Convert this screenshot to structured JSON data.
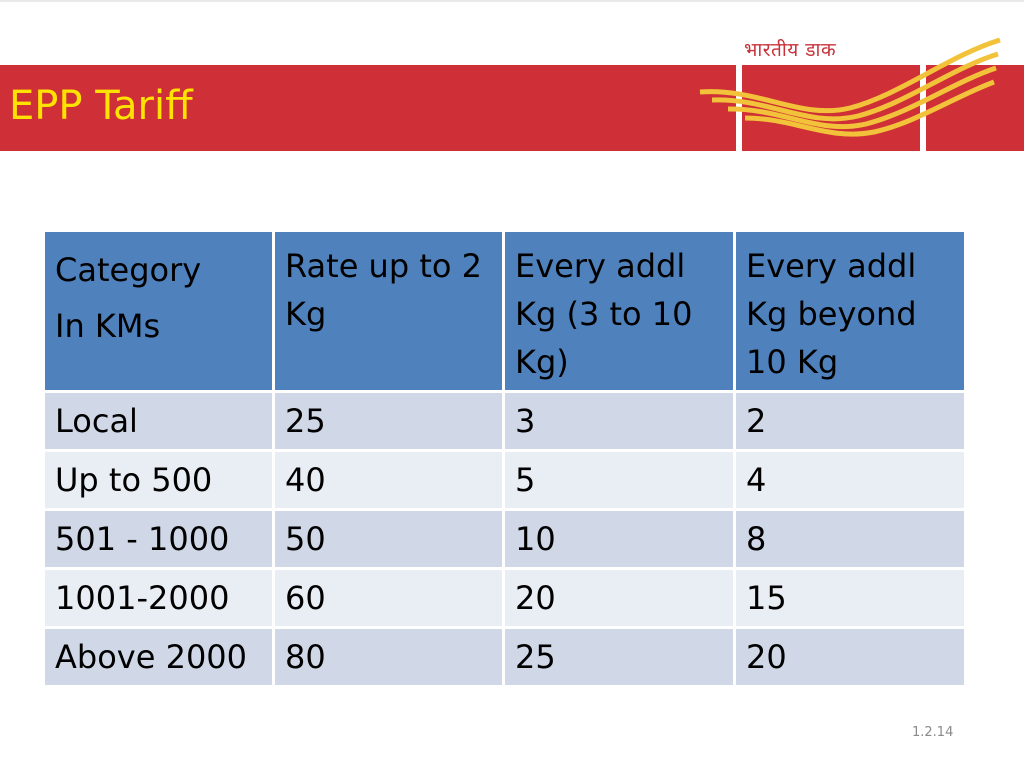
{
  "slide": {
    "title": "EPP Tariff",
    "logo_text": "भारतीय डाक",
    "slide_number": "1.2.14"
  },
  "colors": {
    "title_bar": "#cf2f36",
    "title_text": "#ffe300",
    "header_fill": "#4f81bd",
    "row_odd": "#d0d8e8",
    "row_even": "#e9edf4"
  },
  "table": {
    "headers": [
      {
        "lines": [
          "Category",
          "In KMs"
        ]
      },
      {
        "lines": [
          "Rate up to 2 Kg"
        ]
      },
      {
        "lines": [
          "Every addl Kg (3 to 10 Kg)"
        ]
      },
      {
        "lines": [
          "Every addl Kg beyond 10 Kg"
        ]
      }
    ],
    "rows": [
      [
        "Local",
        "25",
        "3",
        "2"
      ],
      [
        "Up to 500",
        "40",
        "5",
        "4"
      ],
      [
        "501 - 1000",
        "50",
        "10",
        "8"
      ],
      [
        "1001-2000",
        "60",
        "20",
        "15"
      ],
      [
        "Above 2000",
        "80",
        "25",
        "20"
      ]
    ]
  }
}
